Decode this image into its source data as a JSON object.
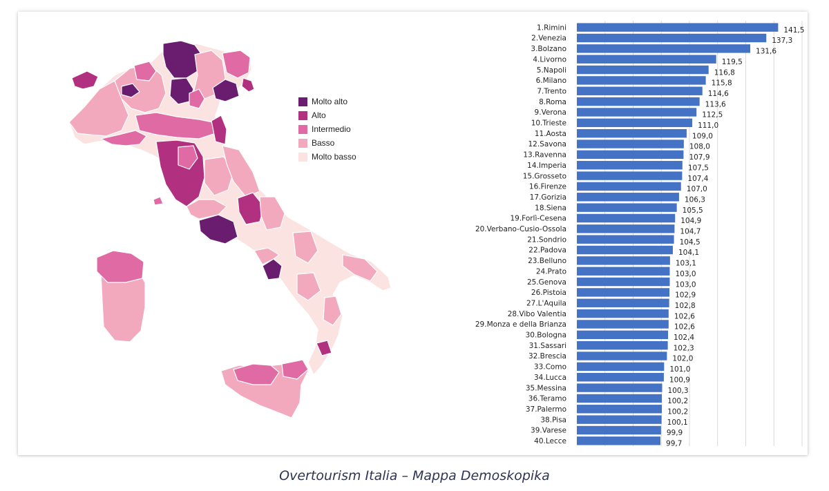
{
  "caption": "Overtourism Italia – Mappa Demoskopika",
  "colors": {
    "molto_alto": "#6a1d6e",
    "alto": "#b1307f",
    "intermedio": "#e06aa3",
    "basso": "#f3a9bd",
    "molto_basso": "#fbe3e2",
    "bar": "#4472c4",
    "grid": "#d9d9d9"
  },
  "map": {
    "legend": [
      {
        "label": "Molto alto",
        "color": "#6a1d6e"
      },
      {
        "label": "Alto",
        "color": "#b1307f"
      },
      {
        "label": "Intermedio",
        "color": "#e06aa3"
      },
      {
        "label": "Basso",
        "color": "#f3a9bd"
      },
      {
        "label": "Molto basso",
        "color": "#fbe3e2"
      }
    ]
  },
  "chart_data": {
    "type": "bar",
    "orientation": "horizontal",
    "title": "",
    "xlabel": "",
    "ylabel": "",
    "grid": true,
    "categories": [
      "1.Rimini",
      "2.Venezia",
      "3.Bolzano",
      "4.Livorno",
      "5.Napoli",
      "6.Milano",
      "7.Trento",
      "8.Roma",
      "9.Verona",
      "10.Trieste",
      "11.Aosta",
      "12.Savona",
      "13.Ravenna",
      "14.Imperia",
      "15.Grosseto",
      "16.Firenze",
      "17.Gorizia",
      "18.Siena",
      "19.Forlì-Cesena",
      "20.Verbano-Cusio-Ossola",
      "21.Sondrio",
      "22.Padova",
      "23.Belluno",
      "24.Prato",
      "25.Genova",
      "26.Pistoia",
      "27.L'Aquila",
      "28.Vibo Valentia",
      "29.Monza e della Brianza",
      "30.Bologna",
      "31.Sassari",
      "32.Brescia",
      "33.Como",
      "34.Lucca",
      "35.Messina",
      "36.Teramo",
      "37.Palermo",
      "38.Pisa",
      "39.Varese",
      "40.Lecce"
    ],
    "values": [
      141.5,
      137.3,
      131.6,
      119.5,
      116.8,
      115.8,
      114.6,
      113.6,
      112.5,
      111.0,
      109.0,
      108.0,
      107.9,
      107.5,
      107.4,
      107.0,
      106.3,
      105.5,
      104.9,
      104.7,
      104.5,
      104.1,
      103.1,
      103.0,
      103.0,
      102.9,
      102.8,
      102.6,
      102.6,
      102.4,
      102.3,
      102.0,
      101.0,
      100.9,
      100.3,
      100.2,
      100.2,
      100.1,
      99.9,
      99.7
    ],
    "value_labels": [
      "141,5",
      "137,3",
      "131,6",
      "119,5",
      "116,8",
      "115,8",
      "114,6",
      "113,6",
      "112,5",
      "111,0",
      "109,0",
      "108,0",
      "107,9",
      "107,5",
      "107,4",
      "107,0",
      "106,3",
      "105,5",
      "104,9",
      "104,7",
      "104,5",
      "104,1",
      "103,1",
      "103,0",
      "103,0",
      "102,9",
      "102,8",
      "102,6",
      "102,6",
      "102,4",
      "102,3",
      "102,0",
      "101,0",
      "100,9",
      "100,3",
      "100,2",
      "100,2",
      "100,1",
      "99,9",
      "99,7"
    ],
    "xlim": [
      70,
      150
    ]
  }
}
